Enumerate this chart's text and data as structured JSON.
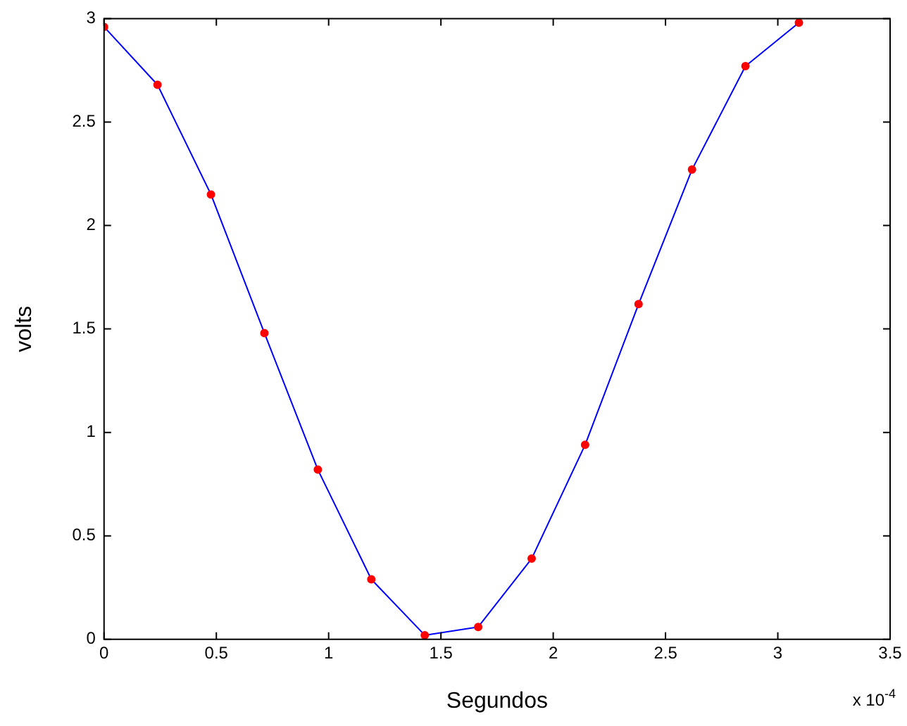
{
  "chart_data": {
    "type": "line",
    "xlabel": "Segundos",
    "ylabel": "volts",
    "annotations": [
      "x 10$^{-4}$"
    ],
    "x": [
      0,
      0.238,
      0.476,
      0.714,
      0.952,
      1.19,
      1.428,
      1.666,
      1.904,
      2.142,
      2.38,
      2.618,
      2.856,
      3.094
    ],
    "series": [
      {
        "color": "#0000ff",
        "colors": [
          "#ff0000",
          "#ff0000",
          "#ff0000",
          "#ff0000",
          "#ff0000",
          "#ff0000",
          "#ff0000",
          "#ff0000",
          "#ff0000",
          "#ff0000",
          "#ff0000",
          "#ff0000",
          "#ff0000",
          "#ff0000"
        ],
        "values": [
          2.96,
          2.68,
          2.15,
          1.48,
          0.82,
          0.29,
          0.02,
          0.06,
          0.39,
          0.94,
          1.62,
          2.27,
          2.77,
          2.98
        ]
      }
    ],
    "xlim": [
      0,
      3.5
    ],
    "xticks": [
      0,
      0.5,
      1,
      1.5,
      2,
      2.5,
      3,
      3.5
    ],
    "ylim": [
      0,
      3
    ],
    "yticks": [
      0,
      0.5,
      1,
      1.5,
      2,
      2.5,
      3
    ],
    "grid": false,
    "legend": false,
    "marker": "circle",
    "line_style": "solid"
  }
}
